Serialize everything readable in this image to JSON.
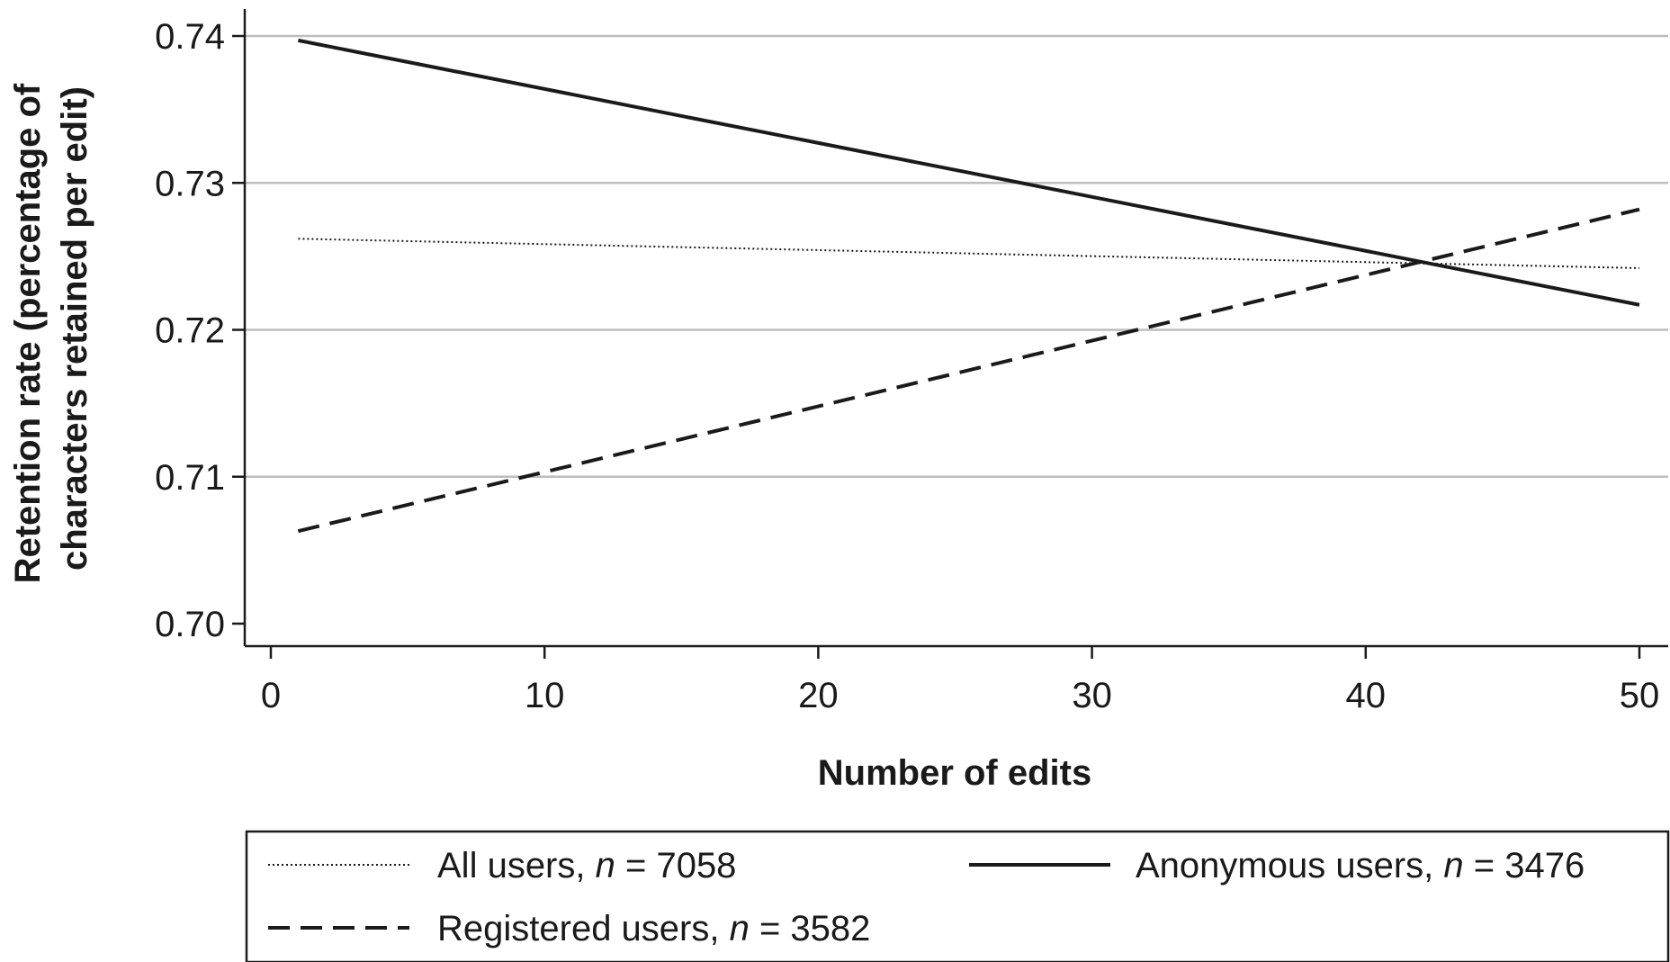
{
  "chart_data": {
    "type": "line",
    "title": "",
    "xlabel": "Number of edits",
    "ylabel_line1": "Retention rate (percentage of",
    "ylabel_line2": "characters retained per edit)",
    "xlim": [
      0,
      50
    ],
    "ylim": [
      0.7,
      0.74
    ],
    "xticks": [
      0,
      10,
      20,
      30,
      40,
      50
    ],
    "xtick_labels": [
      "0",
      "10",
      "20",
      "30",
      "40",
      "50"
    ],
    "yticks": [
      0.7,
      0.71,
      0.72,
      0.73,
      0.74
    ],
    "ytick_labels": [
      "0.70",
      "0.71",
      "0.72",
      "0.73",
      "0.74"
    ],
    "grid": "horizontal",
    "legend_placement": "bottom",
    "series": [
      {
        "label_prefix": "All users, ",
        "n_symbol": "n",
        "n_value": " = 7058",
        "style": "dotted",
        "x": [
          1,
          50
        ],
        "y": [
          0.7262,
          0.7242
        ]
      },
      {
        "label_prefix": "Anonymous users, ",
        "n_symbol": "n",
        "n_value": " = 3476",
        "style": "solid",
        "x": [
          1,
          50
        ],
        "y": [
          0.7397,
          0.7217
        ]
      },
      {
        "label_prefix": "Registered users, ",
        "n_symbol": "n",
        "n_value": " = 3582",
        "style": "dashed",
        "x": [
          1,
          50
        ],
        "y": [
          0.7063,
          0.7282
        ]
      }
    ],
    "colors": {
      "line": "#1a1a1a",
      "grid": "#bdbdbd"
    }
  }
}
